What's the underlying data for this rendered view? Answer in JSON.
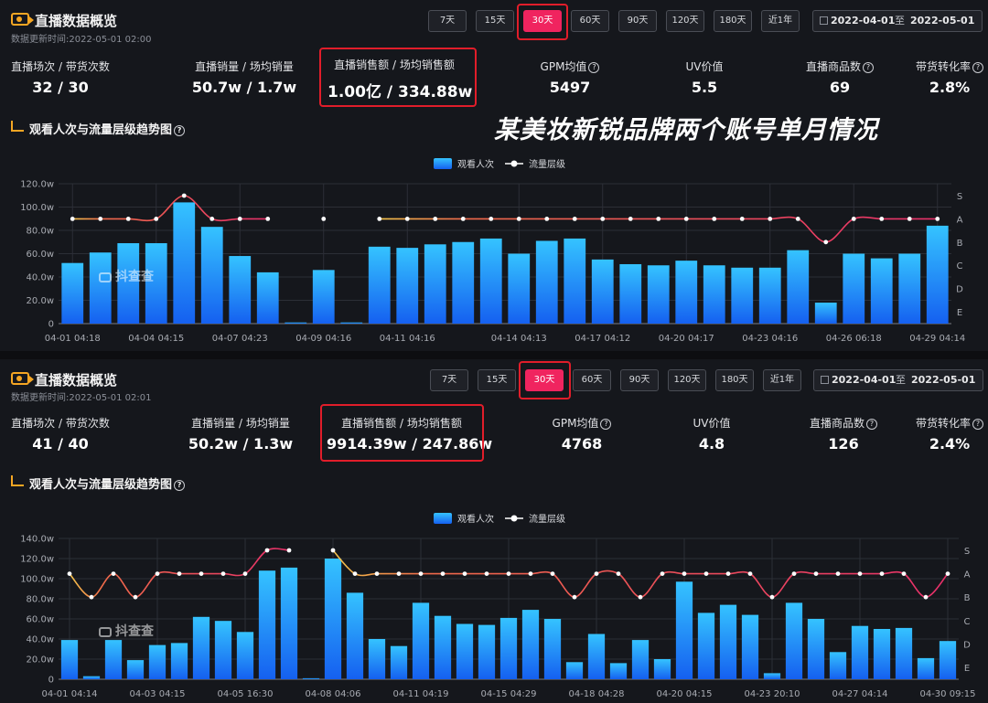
{
  "overlay_title": "某美妆新锐品牌两个账号单月情况",
  "panels": [
    {
      "header": {
        "title": "直播数据概览",
        "updated": "数据更新时间:2022-05-01 02:00"
      },
      "range_buttons": [
        "7天",
        "15天",
        "30天",
        "60天",
        "90天",
        "120天",
        "180天",
        "近1年"
      ],
      "active_range": "30天",
      "date_range": {
        "start": "2022-04-01",
        "sep": "至",
        "end": "2022-05-01"
      },
      "stats": [
        {
          "label": "直播场次 / 带货次数",
          "value": "32 / 30"
        },
        {
          "label": "直播销量 / 场均销量",
          "value": "50.7w / 1.7w"
        },
        {
          "label": "直播销售额 / 场均销售额",
          "value": "1.00亿 / 334.88w"
        },
        {
          "label": "GPM均值",
          "value": "5497",
          "help": "?"
        },
        {
          "label": "UV价值",
          "value": "5.5"
        },
        {
          "label": "直播商品数",
          "value": "69",
          "help": "?"
        },
        {
          "label": "带货转化率",
          "value": "2.8%",
          "help": "?"
        }
      ],
      "trend_title": "观看人次与流量层级趋势图",
      "watermark": "抖查查"
    },
    {
      "header": {
        "title": "直播数据概览",
        "updated": "数据更新时间:2022-05-01 02:01"
      },
      "range_buttons": [
        "7天",
        "15天",
        "30天",
        "60天",
        "90天",
        "120天",
        "180天",
        "近1年"
      ],
      "active_range": "30天",
      "date_range": {
        "start": "2022-04-01",
        "sep": "至",
        "end": "2022-05-01"
      },
      "stats": [
        {
          "label": "直播场次 / 带货次数",
          "value": "41 / 40"
        },
        {
          "label": "直播销量 / 场均销量",
          "value": "50.2w / 1.3w"
        },
        {
          "label": "直播销售额 / 场均销售额",
          "value": "9914.39w / 247.86w"
        },
        {
          "label": "GPM均值",
          "value": "4768",
          "help": "?"
        },
        {
          "label": "UV价值",
          "value": "4.8"
        },
        {
          "label": "直播商品数",
          "value": "126",
          "help": "?"
        },
        {
          "label": "带货转化率",
          "value": "2.4%",
          "help": "?"
        }
      ],
      "trend_title": "观看人次与流量层级趋势图",
      "watermark": "抖查查"
    }
  ],
  "chart_data": [
    {
      "type": "bar",
      "legend": [
        "观看人次",
        "流量层级"
      ],
      "y_ticks": [
        "0",
        "20.0w",
        "40.0w",
        "60.0w",
        "80.0w",
        "100.0w",
        "120.0w"
      ],
      "ylim": [
        0,
        120
      ],
      "y_unit": "w",
      "tier_ticks": [
        "S",
        "A",
        "B",
        "C",
        "D",
        "E"
      ],
      "x_ticks": [
        "04-01 04:18",
        "04-04 04:15",
        "04-07 04:23",
        "04-09 04:16",
        "04-11 04:16",
        "04-14 04:13",
        "04-17 04:12",
        "04-20 04:17",
        "04-23 04:16",
        "04-26 06:18",
        "04-29 04:14"
      ],
      "series": [
        {
          "name": "观看人次",
          "values": [
            52,
            61,
            69,
            69,
            104,
            83,
            58,
            44,
            1,
            46,
            1,
            66,
            65,
            68,
            70,
            73,
            60,
            71,
            73,
            55,
            51,
            50,
            54,
            50,
            48,
            48,
            63,
            18,
            60,
            56,
            60,
            84
          ]
        },
        {
          "name": "流量层级",
          "values": [
            "A",
            "A",
            "A",
            "A",
            "S",
            "A",
            "A",
            "A",
            null,
            "A",
            null,
            "A",
            "A",
            "A",
            "A",
            "A",
            "A",
            "A",
            "A",
            "A",
            "A",
            "A",
            "A",
            "A",
            "A",
            "A",
            "A",
            "B",
            "A",
            "A",
            "A",
            "A"
          ]
        }
      ]
    },
    {
      "type": "bar",
      "legend": [
        "观看人次",
        "流量层级"
      ],
      "y_ticks": [
        "0",
        "20.0w",
        "40.0w",
        "60.0w",
        "80.0w",
        "100.0w",
        "120.0w",
        "140.0w"
      ],
      "ylim": [
        0,
        140
      ],
      "y_unit": "w",
      "tier_ticks": [
        "S",
        "A",
        "B",
        "C",
        "D",
        "E"
      ],
      "x_ticks": [
        "04-01 04:14",
        "04-03 04:15",
        "04-05 16:30",
        "04-08 04:06",
        "04-11 04:19",
        "04-15 04:29",
        "04-18 04:28",
        "04-20 04:15",
        "04-23 20:10",
        "04-27 04:14",
        "04-30 09:15"
      ],
      "series": [
        {
          "name": "观看人次",
          "values": [
            39,
            3,
            39,
            19,
            34,
            36,
            62,
            58,
            47,
            108,
            111,
            1,
            120,
            86,
            40,
            33,
            76,
            63,
            55,
            54,
            61,
            69,
            60,
            17,
            45,
            16,
            39,
            20,
            97,
            66,
            74,
            64,
            6,
            76,
            60,
            27,
            53,
            50,
            51,
            21,
            38
          ]
        },
        {
          "name": "流量层级",
          "values": [
            "A",
            "B",
            "A",
            "B",
            "A",
            "A",
            "A",
            "A",
            "A",
            "S",
            "S",
            null,
            "S",
            "A",
            "A",
            "A",
            "A",
            "A",
            "A",
            "A",
            "A",
            "A",
            "A",
            "B",
            "A",
            "A",
            "B",
            "A",
            "A",
            "A",
            "A",
            "A",
            "B",
            "A",
            "A",
            "A",
            "A",
            "A",
            "A",
            "B",
            "A"
          ]
        }
      ]
    }
  ]
}
